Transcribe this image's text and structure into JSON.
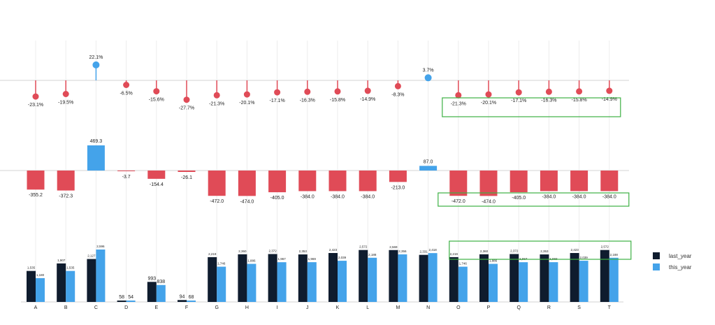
{
  "chart_data": [
    {
      "type": "lollipop",
      "categories": [
        "A",
        "B",
        "C",
        "D",
        "E",
        "F",
        "G",
        "H",
        "I",
        "J",
        "K",
        "L",
        "M",
        "N",
        "O",
        "P",
        "Q",
        "R",
        "S",
        "T"
      ],
      "values": [
        -23.1,
        -19.5,
        22.1,
        -6.5,
        -15.6,
        -27.7,
        -21.3,
        -20.1,
        -17.1,
        -16.3,
        -15.8,
        -14.9,
        -8.3,
        3.7,
        -21.3,
        -20.1,
        -17.1,
        -16.3,
        -15.8,
        -14.9
      ],
      "labels": [
        "-23.1%",
        "-19.5%",
        "22.1%",
        "-6.5%",
        "-15.6%",
        "-27.7%",
        "-21.3%",
        "-20.1%",
        "-17.1%",
        "-16.3%",
        "-15.8%",
        "-14.9%",
        "-8.3%",
        "3.7%",
        "-21.3%",
        "-20.1%",
        "-17.1%",
        "-16.3%",
        "-15.8%",
        "-14.9%"
      ],
      "ylim": [
        -34,
        34
      ],
      "highlight": [
        "O",
        "T"
      ]
    },
    {
      "type": "bar",
      "categories": [
        "A",
        "B",
        "C",
        "D",
        "E",
        "F",
        "G",
        "H",
        "I",
        "J",
        "K",
        "L",
        "M",
        "N",
        "O",
        "P",
        "Q",
        "R",
        "S",
        "T"
      ],
      "values": [
        -355.2,
        -372.3,
        469.3,
        -3.7,
        -154.4,
        -26.1,
        -472.0,
        -474.0,
        -405.0,
        -384.0,
        -384.0,
        -384.0,
        -213.0,
        87.0,
        -472.0,
        -474.0,
        -405.0,
        -384.0,
        -384.0,
        -384.0
      ],
      "labels": [
        "-355.2",
        "-372.3",
        "469.3",
        "-3.7",
        "-154.4",
        "-26.1",
        "-472.0",
        "-474.0",
        "-405.0",
        "-384.0",
        "-384.0",
        "-384.0",
        "-213.0",
        "87.0",
        "-472.0",
        "-474.0",
        "-405.0",
        "-384.0",
        "-384.0",
        "-384.0"
      ],
      "ylim": [
        -540,
        540
      ],
      "highlight": [
        "O",
        "T"
      ]
    },
    {
      "type": "bar",
      "categories": [
        "A",
        "B",
        "C",
        "D",
        "E",
        "F",
        "G",
        "H",
        "I",
        "J",
        "K",
        "L",
        "M",
        "N",
        "O",
        "P",
        "Q",
        "R",
        "S",
        "T"
      ],
      "series": [
        {
          "name": "last_year",
          "values": [
            1535,
            1907,
            2127,
            58,
            993,
            94,
            2219,
            2360,
            2372,
            2353,
            2423,
            2572,
            2569,
            2331,
            2219,
            2360,
            2372,
            2353,
            2423,
            2572
          ],
          "labels": [
            "1,535",
            "1,907",
            "2,127",
            "58",
            "993",
            "94",
            "2,219",
            "2,360",
            "2,372",
            "2,353",
            "2,423",
            "2,572",
            "2,569",
            "2,331",
            "2,219",
            "2,360",
            "2,372",
            "2,353",
            "2,423",
            "2,572"
          ]
        },
        {
          "name": "this_year",
          "values": [
            1180,
            1535,
            2596,
            54,
            838,
            68,
            1746,
            1886,
            1967,
            1969,
            2039,
            2188,
            2356,
            2418,
            1746,
            1886,
            1967,
            1969,
            2039,
            2188
          ],
          "labels": [
            "1,180",
            "1,535",
            "2,596",
            "54",
            "838",
            "68",
            "1,746",
            "1,886",
            "1,967",
            "1,969",
            "2,039",
            "2,188",
            "2,356",
            "2,418",
            "1,746",
            "1,886",
            "1,967",
            "1,969",
            "2,039",
            "2,188"
          ]
        }
      ],
      "ylim": [
        0,
        2900
      ],
      "highlight": [
        "O",
        "T"
      ],
      "legend": "right"
    }
  ],
  "colors": {
    "negative": "#e04b57",
    "positive": "#44a3ea",
    "last_year": "#0f1c2e",
    "this_year": "#44a3ea",
    "highlight_box": "#3cb043"
  }
}
